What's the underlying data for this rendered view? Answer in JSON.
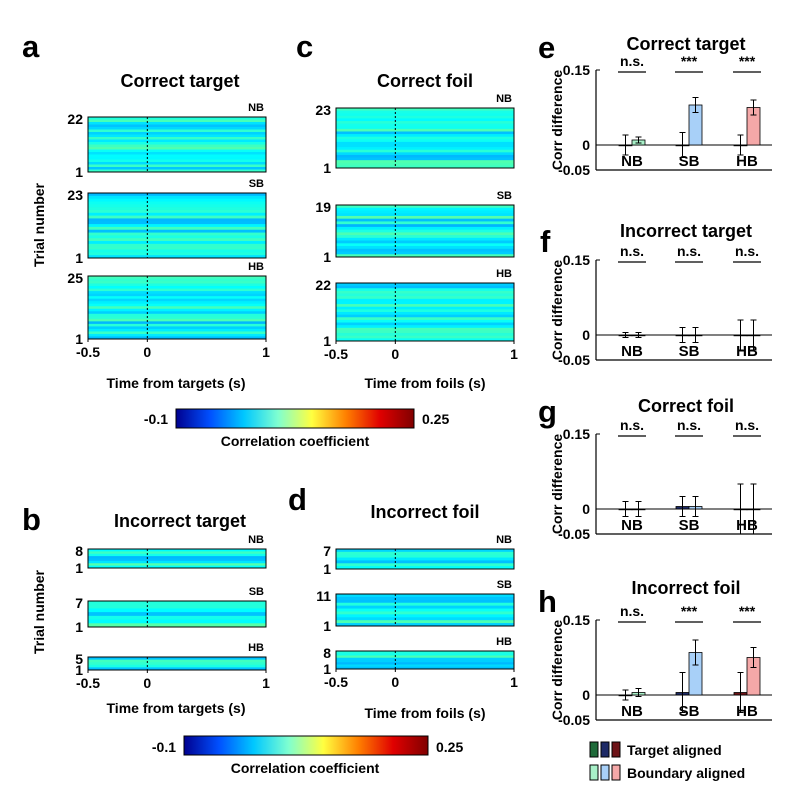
{
  "figure": {
    "panel_letters": [
      "a",
      "b",
      "c",
      "d",
      "e",
      "f",
      "g",
      "h"
    ],
    "heatmap_titles": {
      "a": "Correct target",
      "b": "Incorrect target",
      "c": "Correct foil",
      "d": "Incorrect foil"
    },
    "ylabel_heatmap": "Trial number",
    "xlabel_targets": "Time from targets (s)",
    "xlabel_foils": "Time from foils (s)",
    "x_ticks": [
      "-0.5",
      "0",
      "1"
    ],
    "colorbar": {
      "min_label": "-0.1",
      "max_label": "0.25",
      "label": "Correlation coefficient",
      "colors": [
        "#00008f",
        "#0050ff",
        "#00c8ff",
        "#7fffd0",
        "#ffff40",
        "#ff8000",
        "#e00000",
        "#800000"
      ]
    },
    "bar_ylabel": "Corr difference",
    "bar_yticks": [
      "0.15",
      "0",
      "-0.05"
    ],
    "legend": {
      "target_label": "Target aligned",
      "boundary_label": "Boundary aligned",
      "target_colors": [
        "#1f6b3a",
        "#1d2a66",
        "#6e1418"
      ],
      "boundary_colors": [
        "#a8f0c8",
        "#a8d0f8",
        "#f5a8a8"
      ]
    }
  },
  "chart_data": [
    {
      "panel": "a",
      "type": "heatmap",
      "title": "Correct target",
      "xlabel": "Time from targets (s)",
      "ylabel": "Trial number",
      "xlim": [
        -0.5,
        1
      ],
      "color_range": [
        -0.1,
        0.25
      ],
      "groups": [
        {
          "condition": "NB",
          "trials": 22,
          "yticks": [
            "22",
            "1"
          ]
        },
        {
          "condition": "SB",
          "trials": 23,
          "yticks": [
            "23",
            "1"
          ]
        },
        {
          "condition": "HB",
          "trials": 25,
          "yticks": [
            "25",
            "1"
          ]
        }
      ]
    },
    {
      "panel": "b",
      "type": "heatmap",
      "title": "Incorrect target",
      "xlabel": "Time from targets (s)",
      "ylabel": "Trial number",
      "xlim": [
        -0.5,
        1
      ],
      "color_range": [
        -0.1,
        0.25
      ],
      "groups": [
        {
          "condition": "NB",
          "trials": 8,
          "yticks": [
            "8",
            "1"
          ]
        },
        {
          "condition": "SB",
          "trials": 7,
          "yticks": [
            "7",
            "1"
          ]
        },
        {
          "condition": "HB",
          "trials": 5,
          "yticks": [
            "5",
            "1"
          ]
        }
      ]
    },
    {
      "panel": "c",
      "type": "heatmap",
      "title": "Correct foil",
      "xlabel": "Time from foils (s)",
      "xlim": [
        -0.5,
        1
      ],
      "color_range": [
        -0.1,
        0.25
      ],
      "groups": [
        {
          "condition": "NB",
          "trials": 23,
          "yticks": [
            "23",
            "1"
          ]
        },
        {
          "condition": "SB",
          "trials": 19,
          "yticks": [
            "19",
            "1"
          ]
        },
        {
          "condition": "HB",
          "trials": 22,
          "yticks": [
            "22",
            "1"
          ]
        }
      ]
    },
    {
      "panel": "d",
      "type": "heatmap",
      "title": "Incorrect foil",
      "xlabel": "Time from foils (s)",
      "xlim": [
        -0.5,
        1
      ],
      "color_range": [
        -0.1,
        0.25
      ],
      "groups": [
        {
          "condition": "NB",
          "trials": 7,
          "yticks": [
            "7",
            "1"
          ]
        },
        {
          "condition": "SB",
          "trials": 11,
          "yticks": [
            "11",
            "1"
          ]
        },
        {
          "condition": "HB",
          "trials": 8,
          "yticks": [
            "8",
            "1"
          ]
        }
      ]
    },
    {
      "panel": "e",
      "type": "bar",
      "title": "Correct target",
      "ylabel": "Corr difference",
      "ylim": [
        -0.05,
        0.15
      ],
      "categories": [
        "NB",
        "SB",
        "HB"
      ],
      "significance": [
        "n.s.",
        "***",
        "***"
      ],
      "series": [
        {
          "name": "Target aligned",
          "values": [
            0.0,
            0.0,
            0.0
          ],
          "errors": [
            0.02,
            0.025,
            0.02
          ]
        },
        {
          "name": "Boundary aligned",
          "values": [
            0.01,
            0.08,
            0.075
          ],
          "errors": [
            0.006,
            0.015,
            0.015
          ]
        }
      ]
    },
    {
      "panel": "f",
      "type": "bar",
      "title": "Incorrect target",
      "ylabel": "Corr difference",
      "ylim": [
        -0.05,
        0.15
      ],
      "categories": [
        "NB",
        "SB",
        "HB"
      ],
      "significance": [
        "n.s.",
        "n.s.",
        "n.s."
      ],
      "series": [
        {
          "name": "Target aligned",
          "values": [
            0.0,
            0.0,
            0.0
          ],
          "errors": [
            0.005,
            0.015,
            0.03
          ]
        },
        {
          "name": "Boundary aligned",
          "values": [
            0.0,
            0.0,
            0.0
          ],
          "errors": [
            0.005,
            0.015,
            0.03
          ]
        }
      ]
    },
    {
      "panel": "g",
      "type": "bar",
      "title": "Correct foil",
      "ylabel": "Corr difference",
      "ylim": [
        -0.05,
        0.15
      ],
      "categories": [
        "NB",
        "SB",
        "HB"
      ],
      "significance": [
        "n.s.",
        "n.s.",
        "n.s."
      ],
      "series": [
        {
          "name": "Target aligned",
          "values": [
            0.0,
            0.005,
            0.0
          ],
          "errors": [
            0.015,
            0.02,
            0.05
          ]
        },
        {
          "name": "Boundary aligned",
          "values": [
            0.0,
            0.005,
            0.0
          ],
          "errors": [
            0.015,
            0.02,
            0.05
          ]
        }
      ]
    },
    {
      "panel": "h",
      "type": "bar",
      "title": "Incorrect foil",
      "ylabel": "Corr difference",
      "ylim": [
        -0.05,
        0.15
      ],
      "categories": [
        "NB",
        "SB",
        "HB"
      ],
      "significance": [
        "n.s.",
        "***",
        "***"
      ],
      "series": [
        {
          "name": "Target aligned",
          "values": [
            0.0,
            0.005,
            0.005
          ],
          "errors": [
            0.01,
            0.04,
            0.04
          ]
        },
        {
          "name": "Boundary aligned",
          "values": [
            0.005,
            0.085,
            0.075
          ],
          "errors": [
            0.008,
            0.025,
            0.02
          ]
        }
      ]
    }
  ]
}
